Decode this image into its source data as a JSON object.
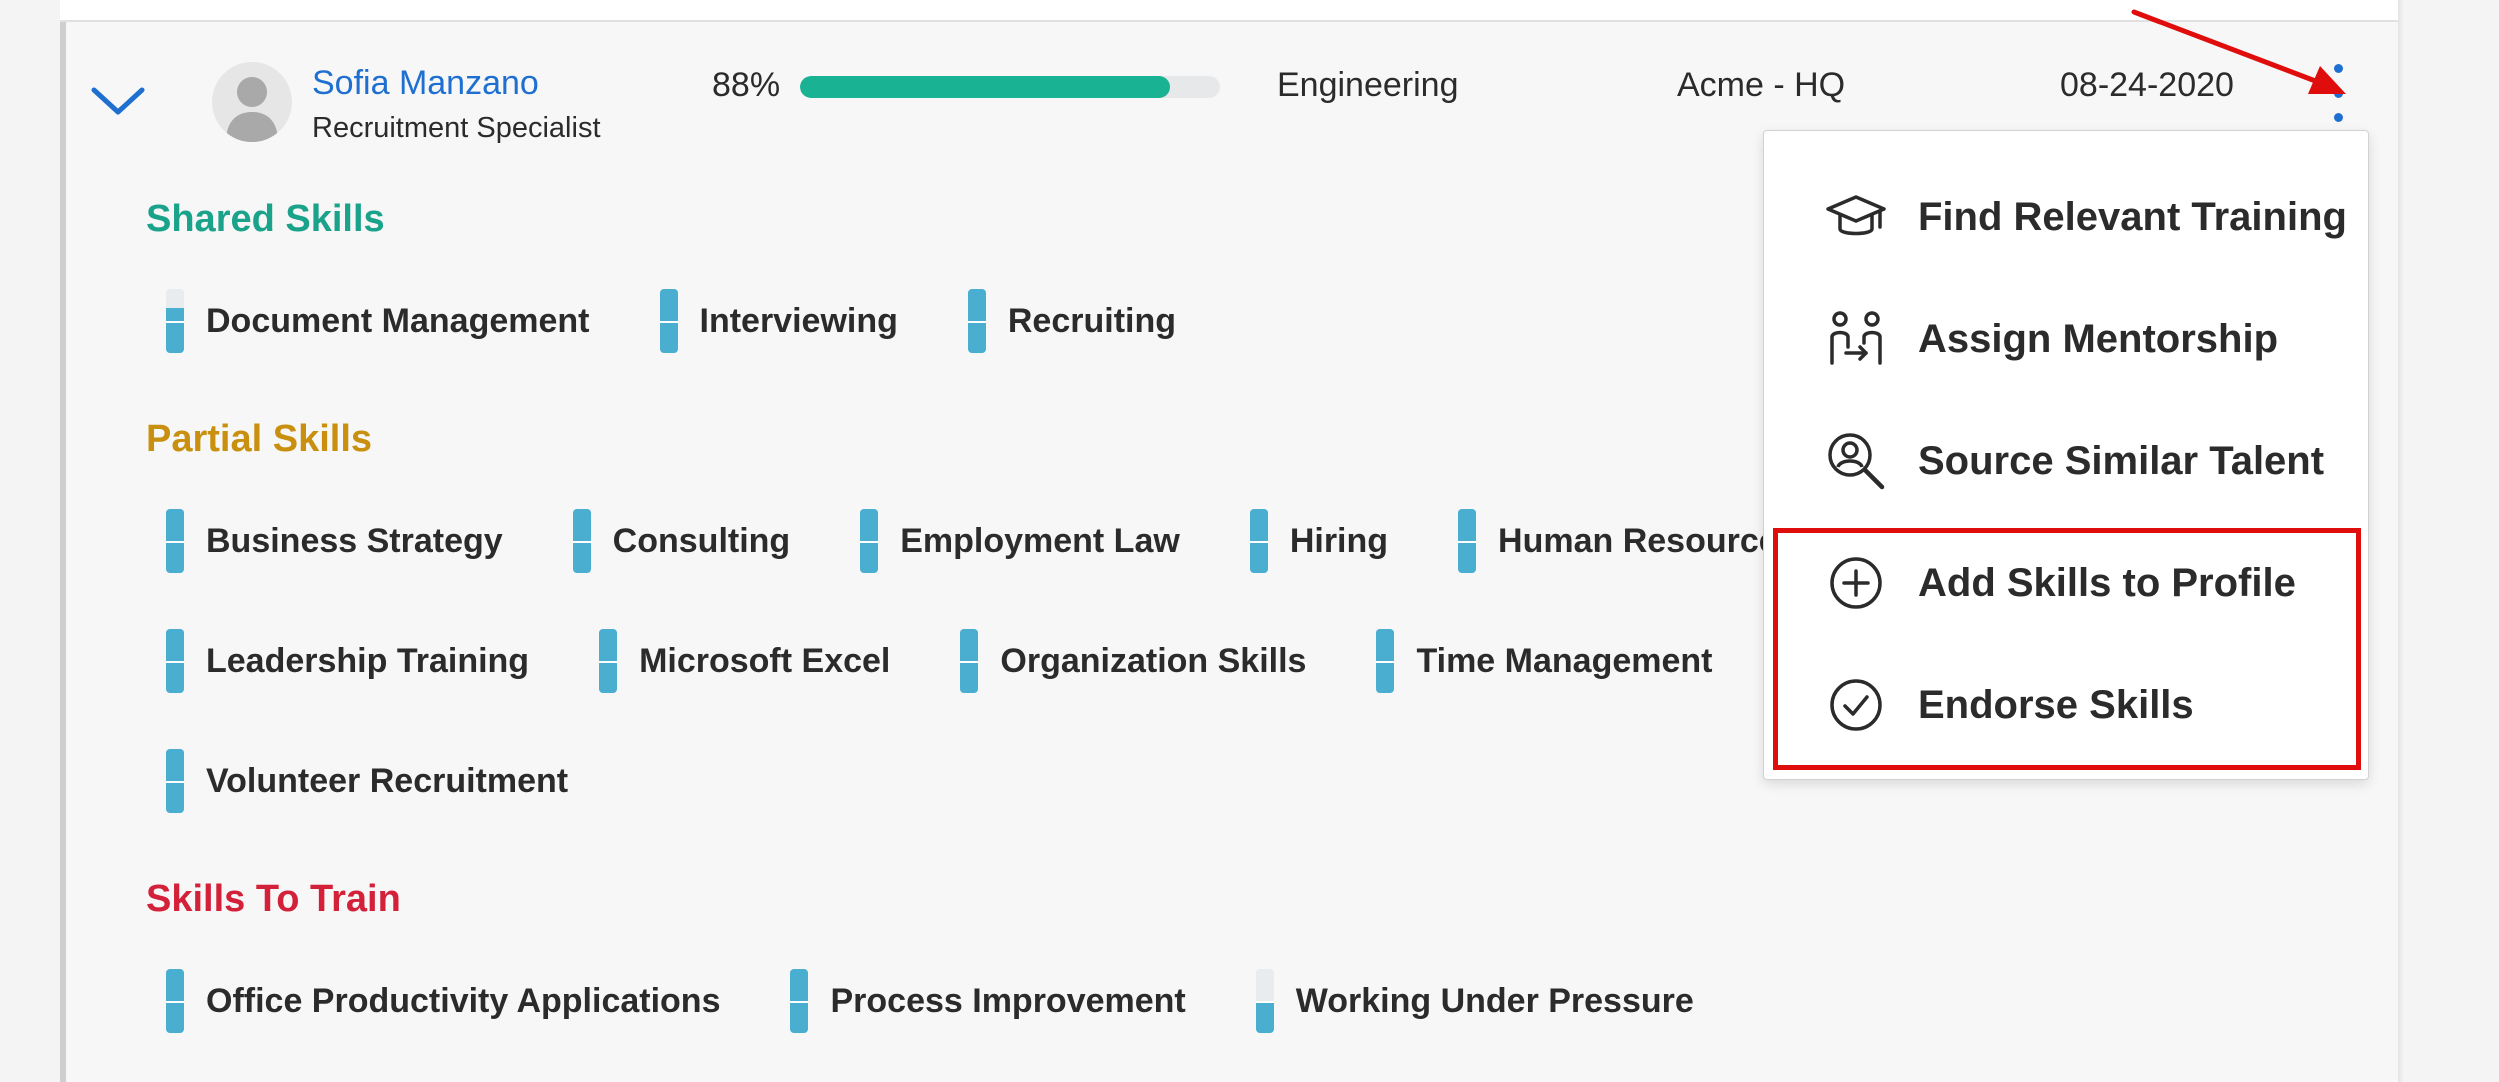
{
  "employee": {
    "name": "Sofia Manzano",
    "role": "Recruitment Specialist",
    "match_percent": "88%",
    "match_value": 0.88,
    "department": "Engineering",
    "location": "Acme - HQ",
    "date": "08-24-2020"
  },
  "sections": {
    "shared": {
      "title": "Shared Skills",
      "color": "#1aa38a",
      "skills": [
        {
          "label": "Document Management",
          "level": 0.7
        },
        {
          "label": "Interviewing",
          "level": 1.0
        },
        {
          "label": "Recruiting",
          "level": 1.0
        }
      ]
    },
    "partial": {
      "title": "Partial Skills",
      "color": "#c8900e",
      "skills": [
        {
          "label": "Business Strategy",
          "level": 1.0
        },
        {
          "label": "Consulting",
          "level": 1.0
        },
        {
          "label": "Employment Law",
          "level": 1.0
        },
        {
          "label": "Hiring",
          "level": 1.0
        },
        {
          "label": "Human Resource",
          "level": 1.0
        },
        {
          "label": "Leadership Training",
          "level": 1.0
        },
        {
          "label": "Microsoft Excel",
          "level": 1.0
        },
        {
          "label": "Organization Skills",
          "level": 1.0
        },
        {
          "label": "Time Management",
          "level": 1.0
        },
        {
          "label": "Volunteer Recruitment",
          "level": 1.0
        }
      ]
    },
    "train": {
      "title": "Skills To Train",
      "color": "#d3213a",
      "skills": [
        {
          "label": "Office Productivity Applications",
          "level": 1.0
        },
        {
          "label": "Process Improvement",
          "level": 1.0
        },
        {
          "label": "Working Under Pressure",
          "level": 0.5
        }
      ]
    }
  },
  "menu": {
    "items": [
      {
        "label": "Find Relevant Training",
        "icon": "graduation-cap-icon"
      },
      {
        "label": "Assign Mentorship",
        "icon": "mentorship-icon"
      },
      {
        "label": "Source Similar Talent",
        "icon": "person-search-icon"
      },
      {
        "label": "Add Skills to Profile",
        "icon": "plus-circle-icon"
      },
      {
        "label": "Endorse Skills",
        "icon": "check-circle-icon"
      }
    ]
  },
  "colors": {
    "accent": "#1f6fd1",
    "progress": "#19b394",
    "skill_gauge": "#4aaed1",
    "annotation": "#e00d0d"
  }
}
